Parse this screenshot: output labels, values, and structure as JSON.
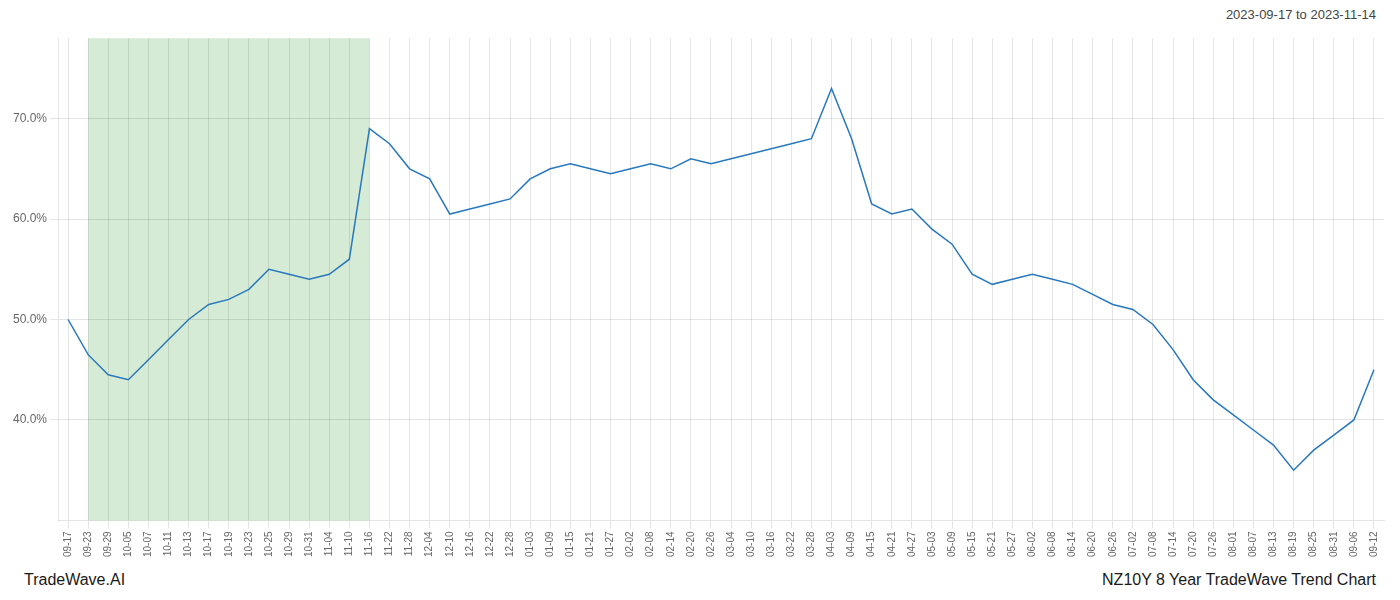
{
  "chart_data": {
    "type": "line",
    "annotations": [
      "2023-09-17 to 2023-11-14",
      "TradeWave.AI",
      "NZ10Y 8 Year TradeWave Trend Chart"
    ],
    "color": "#2878bd",
    "grid": true,
    "ylim": [
      30,
      78
    ],
    "yticks": [
      {
        "value": 40.0,
        "label": "40.0%"
      },
      {
        "value": 50.0,
        "label": "50.0%"
      },
      {
        "value": 60.0,
        "label": "60.0%"
      },
      {
        "value": 70.0,
        "label": "70.0%"
      }
    ],
    "highlight": {
      "from": "09-23",
      "to": "11-16",
      "color": "#d5ebd5"
    },
    "categories": [
      "09-17",
      "09-23",
      "09-29",
      "10-05",
      "10-07",
      "10-11",
      "10-13",
      "10-17",
      "10-19",
      "10-23",
      "10-25",
      "10-29",
      "10-31",
      "11-04",
      "11-10",
      "11-16",
      "11-22",
      "11-28",
      "12-04",
      "12-10",
      "12-16",
      "12-22",
      "12-28",
      "01-03",
      "01-09",
      "01-15",
      "01-21",
      "01-27",
      "02-02",
      "02-08",
      "02-14",
      "02-20",
      "02-26",
      "03-04",
      "03-10",
      "03-16",
      "03-22",
      "03-28",
      "04-03",
      "04-09",
      "04-15",
      "04-21",
      "04-27",
      "05-03",
      "05-09",
      "05-15",
      "05-21",
      "05-27",
      "06-02",
      "06-08",
      "06-14",
      "06-20",
      "06-26",
      "07-02",
      "07-08",
      "07-14",
      "07-20",
      "07-26",
      "08-01",
      "08-07",
      "08-13",
      "08-19",
      "08-25",
      "08-31",
      "09-06",
      "09-12"
    ],
    "values": [
      50.0,
      46.5,
      44.5,
      44.0,
      46.0,
      48.0,
      50.0,
      51.5,
      52.0,
      53.0,
      55.0,
      54.5,
      54.0,
      54.5,
      56.0,
      69.0,
      67.5,
      65.0,
      64.0,
      60.5,
      61.0,
      61.5,
      62.0,
      64.0,
      65.0,
      65.5,
      65.0,
      64.5,
      65.0,
      65.5,
      65.0,
      66.0,
      65.5,
      66.0,
      66.5,
      67.0,
      67.5,
      68.0,
      73.0,
      68.0,
      61.5,
      60.5,
      61.0,
      59.0,
      57.5,
      54.5,
      53.5,
      54.0,
      54.5,
      54.0,
      53.5,
      52.5,
      51.5,
      51.0,
      49.5,
      47.0,
      44.0,
      42.0,
      40.5,
      39.0,
      37.5,
      35.0,
      37.0,
      38.5,
      40.0,
      45.0
    ]
  }
}
